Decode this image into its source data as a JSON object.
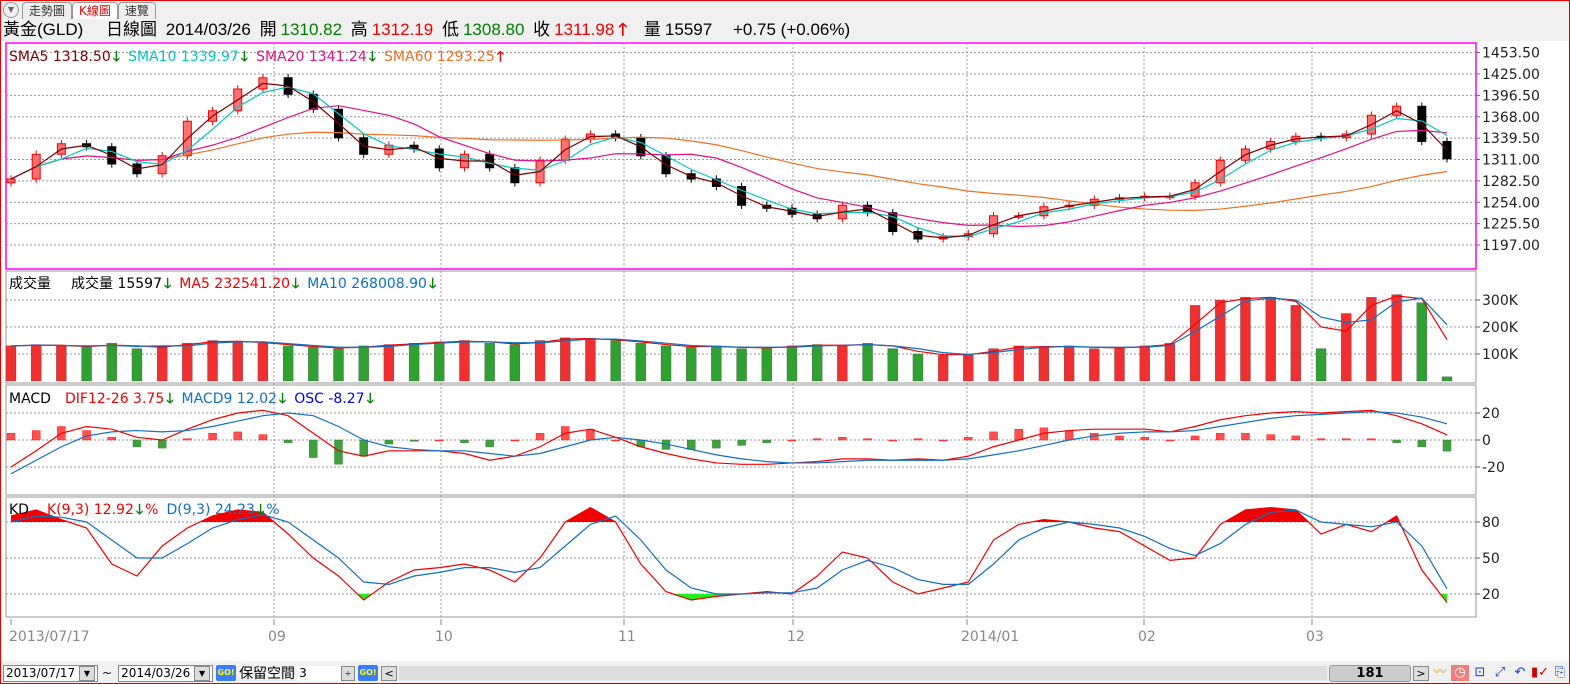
{
  "tabs": [
    "走勢圖",
    "K線圖",
    "速覽"
  ],
  "active_tab": 1,
  "quote": {
    "name": "黃金(GLD)",
    "period": "日線圖",
    "date": "2014/03/26",
    "open_label": "開",
    "open": "1310.82",
    "high_label": "高",
    "high": "1312.19",
    "low_label": "低",
    "low": "1308.80",
    "close_label": "收",
    "close": "1311.98",
    "volume_label": "量",
    "volume": "15597",
    "change": "+0.75 (+0.06%)"
  },
  "legends": {
    "price": [
      {
        "label": "SMA5 1318.50",
        "dir": "down",
        "color": "#800000"
      },
      {
        "label": "SMA10 1339.97",
        "dir": "down",
        "color": "#00c8c8"
      },
      {
        "label": "SMA20 1341.24",
        "dir": "down",
        "color": "#e0108a"
      },
      {
        "label": "SMA60 1293.25",
        "dir": "up",
        "color": "#f07020"
      }
    ],
    "volume_title": "成交量",
    "volume": [
      {
        "label": "成交量 15597",
        "dir": "down",
        "color": "#000000"
      },
      {
        "label": "MA5 232541.20",
        "dir": "down",
        "color": "#f00000"
      },
      {
        "label": "MA10 268008.90",
        "dir": "down",
        "color": "#1070c0"
      }
    ],
    "macd_title": "MACD",
    "macd": [
      {
        "label": "DIF12-26 3.75",
        "dir": "down",
        "color": "#f00000"
      },
      {
        "label": "MACD9 12.02",
        "dir": "down",
        "color": "#1070c0"
      },
      {
        "label": "OSC -8.27",
        "dir": "down",
        "color": "#0000f0"
      }
    ],
    "kd_title": "KD",
    "kd": [
      {
        "label": "K(9,3) 12.92",
        "dir": "down",
        "suffix": "%",
        "color": "#f00000"
      },
      {
        "label": "D(9,3) 24.23",
        "dir": "down",
        "suffix": "%",
        "color": "#1070c0"
      }
    ]
  },
  "chart_data": {
    "type": "candlestick",
    "price_axis": {
      "ticks": [
        "1453.50",
        "1425.00",
        "1396.50",
        "1368.00",
        "1339.50",
        "1311.00",
        "1282.50",
        "1254.00",
        "1225.50",
        "1197.00"
      ]
    },
    "volume_axis": {
      "ticks": [
        "300K",
        "200K",
        "100K"
      ]
    },
    "macd_axis": {
      "ticks": [
        "20",
        "0",
        "-20"
      ]
    },
    "kd_axis": {
      "ticks": [
        "80",
        "50",
        "20"
      ]
    },
    "x_labels": [
      "2013/07/17",
      "09",
      "10",
      "11",
      "12",
      "2014/01",
      "02",
      "03"
    ],
    "close": [
      1285,
      1318,
      1332,
      1328,
      1305,
      1292,
      1316,
      1362,
      1376,
      1405,
      1420,
      1398,
      1378,
      1340,
      1318,
      1330,
      1325,
      1300,
      1318,
      1300,
      1280,
      1310,
      1338,
      1345,
      1340,
      1316,
      1292,
      1285,
      1275,
      1250,
      1246,
      1238,
      1232,
      1250,
      1240,
      1215,
      1205,
      1208,
      1212,
      1236,
      1236,
      1248,
      1250,
      1258,
      1260,
      1262,
      1262,
      1280,
      1310,
      1325,
      1335,
      1342,
      1340,
      1345,
      1370,
      1382,
      1335,
      1311.98
    ],
    "volume": [
      130000,
      135000,
      130000,
      125000,
      140000,
      120000,
      130000,
      140000,
      150000,
      145000,
      140000,
      130000,
      125000,
      120000,
      130000,
      135000,
      140000,
      145000,
      150000,
      140000,
      135000,
      150000,
      160000,
      155000,
      150000,
      140000,
      130000,
      125000,
      130000,
      120000,
      125000,
      130000,
      135000,
      130000,
      140000,
      120000,
      100000,
      95000,
      100000,
      120000,
      130000,
      125000,
      130000,
      120000,
      125000,
      130000,
      140000,
      280000,
      300000,
      310000,
      310000,
      280000,
      120000,
      250000,
      310000,
      320000,
      290000,
      15597
    ],
    "dif": [
      -20,
      -8,
      5,
      10,
      8,
      2,
      0,
      8,
      15,
      20,
      22,
      18,
      5,
      -8,
      -12,
      -8,
      -8,
      -8,
      -10,
      -15,
      -12,
      -5,
      5,
      8,
      2,
      -5,
      -10,
      -14,
      -17,
      -18,
      -18,
      -17,
      -16,
      -14,
      -14,
      -15,
      -14,
      -15,
      -12,
      -5,
      0,
      5,
      7,
      8,
      8,
      8,
      6,
      10,
      15,
      18,
      20,
      21,
      20,
      21,
      22,
      18,
      12,
      3.75
    ],
    "macd": [
      -25,
      -15,
      -5,
      3,
      6,
      7,
      6,
      7,
      10,
      14,
      18,
      20,
      18,
      10,
      0,
      -5,
      -7,
      -8,
      -8,
      -10,
      -12,
      -10,
      -5,
      0,
      2,
      0,
      -3,
      -7,
      -11,
      -14,
      -16,
      -17,
      -17,
      -16,
      -15,
      -15,
      -15,
      -15,
      -14,
      -11,
      -8,
      -4,
      0,
      3,
      5,
      6,
      6,
      7,
      10,
      13,
      16,
      18,
      19,
      20,
      21,
      20,
      17,
      12.02
    ],
    "k": [
      85,
      90,
      82,
      75,
      45,
      35,
      60,
      75,
      85,
      90,
      88,
      70,
      50,
      35,
      15,
      30,
      40,
      42,
      45,
      40,
      30,
      50,
      80,
      92,
      80,
      45,
      22,
      15,
      18,
      20,
      22,
      20,
      35,
      55,
      50,
      30,
      20,
      25,
      30,
      65,
      78,
      82,
      80,
      75,
      72,
      60,
      48,
      50,
      78,
      90,
      92,
      90,
      70,
      78,
      72,
      85,
      40,
      12.92
    ],
    "d": [
      80,
      85,
      84,
      80,
      65,
      50,
      50,
      62,
      75,
      82,
      86,
      80,
      65,
      50,
      30,
      28,
      35,
      38,
      42,
      42,
      38,
      42,
      60,
      78,
      85,
      65,
      40,
      25,
      20,
      20,
      21,
      21,
      25,
      40,
      48,
      42,
      32,
      28,
      28,
      45,
      65,
      75,
      80,
      78,
      75,
      68,
      58,
      52,
      62,
      78,
      88,
      90,
      80,
      78,
      76,
      80,
      60,
      24.23
    ]
  },
  "toolbar": {
    "start_date": "2013/07/17",
    "tilde": "~",
    "end_date": "2014/03/26",
    "go_label": "GO!",
    "reserve_label": "保留空間",
    "reserve_value": "3",
    "count": "181"
  },
  "colors": {
    "up": "#f00000",
    "down": "#000000",
    "vol_up": "#f03030",
    "vol_down": "#30a030",
    "price_frame": "#ff00ff"
  }
}
